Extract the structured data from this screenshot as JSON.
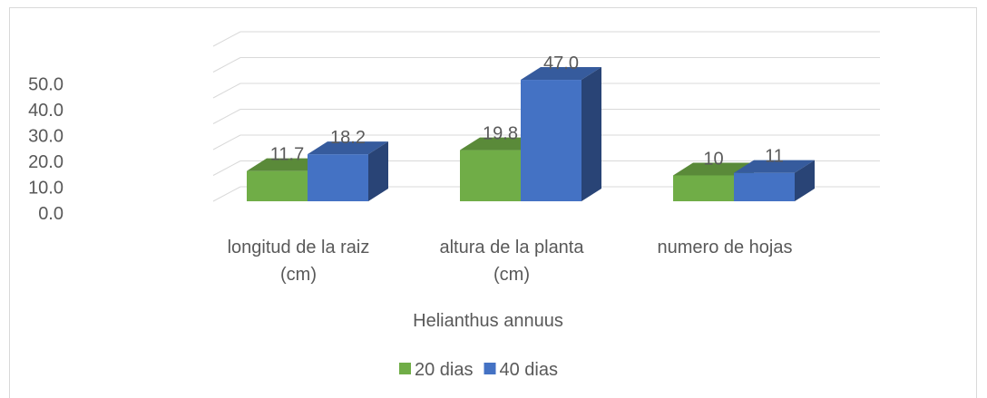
{
  "chart_data": {
    "type": "bar3d",
    "x_label": "Helianthus annuus",
    "categories": [
      "longitud de la raiz (cm)",
      "altura de la planta (cm)",
      "numero de hojas"
    ],
    "series": [
      {
        "name": "20 dias",
        "color": "#70ad47",
        "values": [
          11.7,
          19.8,
          10
        ],
        "value_labels": [
          "11.7",
          "19.8",
          "10"
        ]
      },
      {
        "name": "40 dias",
        "color": "#4472c4",
        "values": [
          18.2,
          47.0,
          11
        ],
        "value_labels": [
          "18.2",
          "47.0",
          "11"
        ]
      }
    ],
    "ylim": [
      0,
      60
    ],
    "yticks": [
      {
        "value": 0,
        "label": "0.0"
      },
      {
        "value": 10,
        "label": "10.0"
      },
      {
        "value": 20,
        "label": "20.0"
      },
      {
        "value": 30,
        "label": "30.0"
      },
      {
        "value": 40,
        "label": "40.0"
      },
      {
        "value": 50,
        "label": "50.0"
      }
    ],
    "grid": true,
    "legend": "bottom"
  }
}
